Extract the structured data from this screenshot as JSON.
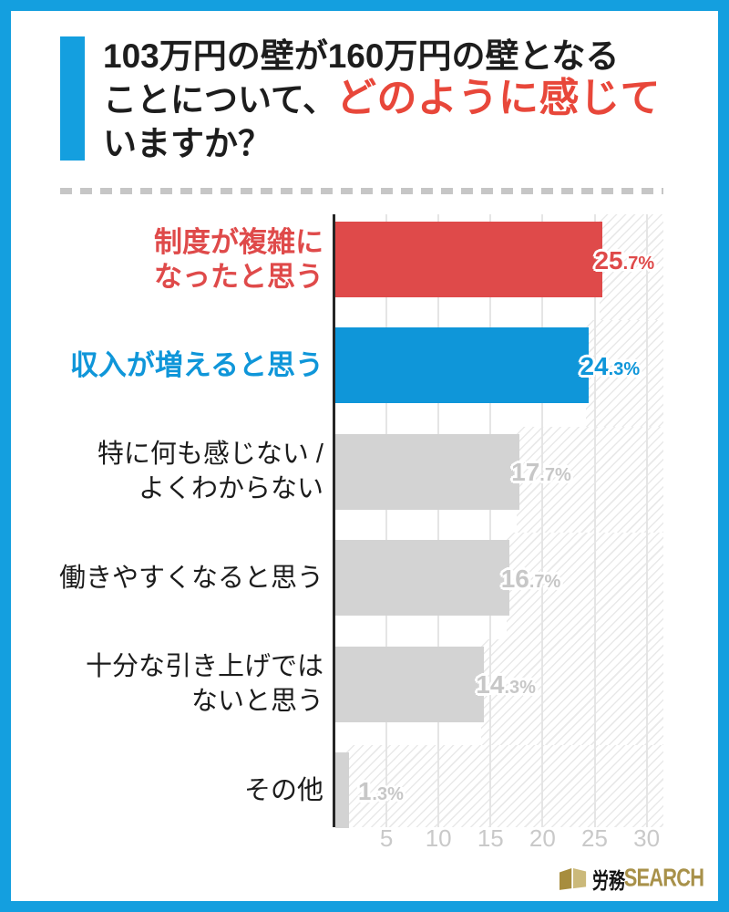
{
  "frame": {
    "border_color": "#149fdf"
  },
  "title": {
    "line1": "103万円の壁が160万円の壁となる",
    "line2_black": "ことについて、",
    "line2_red": "どのように感じて",
    "line3": "いますか？",
    "accent_color": "#149fdf",
    "red_color": "#e8473a"
  },
  "chart_data": {
    "type": "bar",
    "orientation": "horizontal",
    "title": "103万円の壁が160万円の壁となることについて、どのように感じていますか？",
    "categories": [
      "制度が複雑になったと思う",
      "収入が増えると思う",
      "特に何も感じない / よくわからない",
      "働きやすくなると思う",
      "十分な引き上げではないと思う",
      "その他"
    ],
    "values": [
      25.7,
      24.3,
      17.7,
      16.7,
      14.3,
      1.3
    ],
    "value_labels": [
      "25.7%",
      "24.3%",
      "17.7%",
      "16.7%",
      "14.3%",
      "1.3%"
    ],
    "label_lines": [
      [
        "制度が複雑に",
        "なったと思う"
      ],
      [
        "収入が増えると思う"
      ],
      [
        "特に何も感じない /",
        "よくわからない"
      ],
      [
        "働きやすくなると思う"
      ],
      [
        "十分な引き上げでは",
        "ないと思う"
      ],
      [
        "その他"
      ]
    ],
    "bar_colors": [
      "#df4a4a",
      "#0f96d9",
      "#d3d3d3",
      "#d3d3d3",
      "#d3d3d3",
      "#d3d3d3"
    ],
    "label_colors": [
      "#df4a4a",
      "#0f96d9",
      "#1c1c1c",
      "#1c1c1c",
      "#1c1c1c",
      "#1c1c1c"
    ],
    "label_bold": [
      true,
      true,
      false,
      false,
      false,
      false
    ],
    "pct_colors": [
      "#df4a4a",
      "#0f96d9",
      "#c7c7c7",
      "#c7c7c7",
      "#c7c7c7",
      "#c7c7c7"
    ],
    "x_ticks": [
      5,
      10,
      15,
      20,
      25,
      30
    ],
    "xlim": [
      0,
      31.6
    ],
    "grid": true,
    "legend": false
  },
  "footer": {
    "logo_jp": "労務",
    "logo_en": "SEARCH"
  }
}
